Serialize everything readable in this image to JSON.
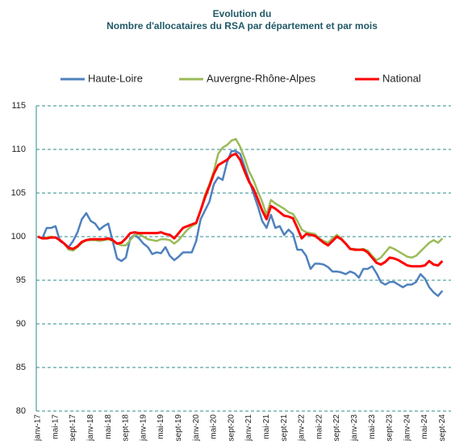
{
  "chart_data": {
    "type": "line",
    "title": "Evolution du",
    "subtitle": "Nombre d'allocataires du RSA par département et par mois",
    "categories": [
      "janv-17",
      null,
      null,
      null,
      "mai-17",
      null,
      null,
      null,
      "sept-17",
      null,
      null,
      null,
      "janv-18",
      null,
      null,
      null,
      "mai-18",
      null,
      null,
      null,
      "sept-18",
      null,
      null,
      null,
      "janv-19",
      null,
      null,
      null,
      "mai-19",
      null,
      null,
      null,
      "sept-19",
      null,
      null,
      null,
      "janv-20",
      null,
      null,
      null,
      "mai-20",
      null,
      null,
      null,
      "sept-20",
      null,
      null,
      null,
      "janv-21",
      null,
      null,
      null,
      "mai-21",
      null,
      null,
      null,
      "sept-21",
      null,
      null,
      null,
      "janv-22",
      null,
      null,
      null,
      "mai-22",
      null,
      null,
      null,
      "sept-22",
      null,
      null,
      null,
      "janv-23",
      null,
      null,
      null,
      "mai-23",
      null,
      null,
      null,
      "sept-23",
      null,
      null,
      null,
      "janv-24",
      null,
      null,
      null,
      "mai-24",
      null,
      null,
      null,
      "sept-24"
    ],
    "series": [
      {
        "name": "Haute-Loire",
        "color": "#4f81bd",
        "values": [
          100,
          99.8,
          101,
          101,
          101.2,
          99.5,
          99.2,
          98.8,
          99.5,
          100.5,
          102,
          102.7,
          101.8,
          101.5,
          100.8,
          101.2,
          101.5,
          99.5,
          97.5,
          97.2,
          97.6,
          99.8,
          100.2,
          99.8,
          99.2,
          98.8,
          98,
          98.2,
          98.1,
          98.8,
          97.8,
          97.3,
          97.7,
          98.2,
          98.2,
          98.2,
          99.5,
          102,
          103,
          104,
          106,
          106.8,
          106.5,
          108.5,
          109.8,
          109.8,
          109.5,
          108,
          106.5,
          105,
          103.5,
          101.8,
          101,
          102.5,
          101,
          101.2,
          100.2,
          100.8,
          100.3,
          98.5,
          98.5,
          97.8,
          96.3,
          96.9,
          96.9,
          96.8,
          96.5,
          96,
          96,
          95.9,
          95.7,
          96,
          95.8,
          95.3,
          96.3,
          96.3,
          96.6,
          95.8,
          94.8,
          94.5,
          94.8,
          94.8,
          94.5,
          94.2,
          94.5,
          94.5,
          94.8,
          95.7,
          95.2,
          94.2,
          93.6,
          93.2,
          93.8
        ]
      },
      {
        "name": "Auvergne-Rhône-Alpes",
        "color": "#9bbb59",
        "values": [
          100,
          99.8,
          99.9,
          100,
          99.9,
          99.6,
          99.2,
          98.5,
          98.4,
          98.8,
          99.3,
          99.6,
          99.6,
          99.6,
          99.5,
          99.6,
          99.7,
          99.5,
          99.2,
          99,
          99,
          99.6,
          100.2,
          100.3,
          100,
          99.7,
          99.6,
          99.5,
          99.7,
          99.7,
          99.6,
          99.2,
          99.6,
          100.2,
          100.8,
          101.2,
          101.5,
          103,
          104.8,
          106,
          107.5,
          109.5,
          110.2,
          110.5,
          111,
          111.2,
          110.3,
          109,
          107.5,
          106.5,
          105.2,
          104,
          102.5,
          104.2,
          103.8,
          103.5,
          103.2,
          102.8,
          102.6,
          101.8,
          100.8,
          100.5,
          100.4,
          100.3,
          99.8,
          99.5,
          99.3,
          99.8,
          100.2,
          99.8,
          99.2,
          98.6,
          98.6,
          98.5,
          98.6,
          98.4,
          97.8,
          97.3,
          97.6,
          98.2,
          98.8,
          98.6,
          98.3,
          98,
          97.7,
          97.6,
          97.8,
          98.3,
          98.8,
          99.3,
          99.6,
          99.3,
          99.8
        ]
      },
      {
        "name": "National",
        "color": "#ff0000",
        "values": [
          100,
          99.8,
          99.8,
          99.9,
          99.9,
          99.6,
          99.2,
          98.7,
          98.6,
          98.9,
          99.4,
          99.6,
          99.7,
          99.7,
          99.7,
          99.7,
          99.8,
          99.6,
          99.2,
          99.3,
          99.8,
          100.4,
          100.5,
          100.4,
          100.4,
          100.4,
          100.4,
          100.4,
          100.5,
          100.3,
          100.2,
          99.8,
          100.4,
          101,
          101.2,
          101.4,
          101.6,
          103,
          104.5,
          105.8,
          107.2,
          108.2,
          108.5,
          108.8,
          109.3,
          109.5,
          108.8,
          107.5,
          106.3,
          105.5,
          104.3,
          103,
          102,
          103.5,
          103.2,
          102.8,
          102.4,
          102.3,
          102.1,
          101,
          99.8,
          100.3,
          100.2,
          100.1,
          99.7,
          99.3,
          99,
          99.5,
          100,
          99.7,
          99.2,
          98.6,
          98.5,
          98.5,
          98.5,
          98.2,
          97.6,
          97,
          96.8,
          97.1,
          97.6,
          97.5,
          97.3,
          97,
          96.7,
          96.6,
          96.6,
          96.6,
          96.7,
          97.2,
          96.8,
          96.7,
          97.2
        ]
      }
    ],
    "ylim": [
      80,
      115
    ],
    "yticks": [
      80,
      85,
      90,
      95,
      100,
      105,
      110,
      115
    ],
    "grid": true,
    "legend": "top"
  }
}
